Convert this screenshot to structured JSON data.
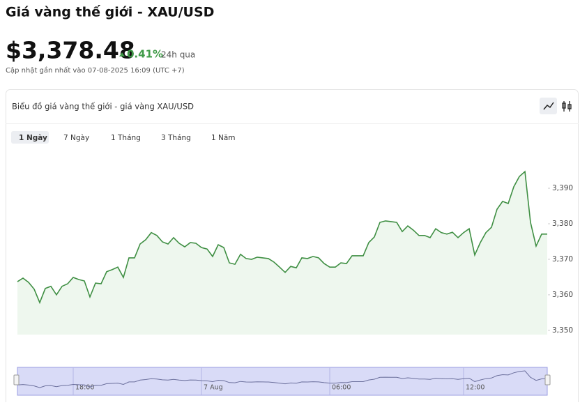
{
  "header": {
    "title": "Giá vàng thế giới - XAU/USD",
    "price": "$3,378.48",
    "change": "0.41%",
    "period": "24h qua",
    "updated": "Cập nhật gần nhất vào 07-08-2025 16:09 (UTC +7)"
  },
  "card": {
    "title": "Biểu đồ giá vàng thế giới - giá vàng XAU/USD",
    "tabs": [
      "1 Ngày",
      "7 Ngày",
      "1 Tháng",
      "3 Tháng",
      "1 Năm"
    ]
  },
  "chart_data": {
    "type": "line",
    "color": "#3f8f43",
    "area_color": "#eef7ee",
    "categories": [
      null,
      null,
      null,
      null,
      null,
      null,
      null,
      null,
      null,
      null,
      "18:00",
      null,
      null,
      null,
      null,
      null,
      null,
      null,
      null,
      null,
      null,
      null,
      null,
      null,
      null,
      null,
      null,
      null,
      null,
      null,
      null,
      null,
      null,
      "7 Aug",
      null,
      null,
      null,
      null,
      null,
      null,
      null,
      null,
      null,
      null,
      null,
      null,
      null,
      null,
      null,
      null,
      null,
      null,
      null,
      null,
      null,
      null,
      "06:00",
      null,
      null,
      null,
      null,
      null,
      null,
      null,
      null,
      null,
      null,
      null,
      null,
      null,
      null,
      null,
      null,
      null,
      null,
      null,
      null,
      null,
      null,
      null,
      "12:00",
      null,
      null,
      null,
      null,
      null,
      null,
      null,
      null,
      null,
      null,
      null,
      null,
      null,
      null,
      null
    ],
    "values": [
      3363.7,
      3364.7,
      3363.5,
      3361.6,
      3357.8,
      3361.8,
      3362.4,
      3360.0,
      3362.4,
      3363.1,
      3364.9,
      3364.3,
      3363.9,
      3359.4,
      3363.3,
      3363.1,
      3366.5,
      3367.1,
      3367.8,
      3364.9,
      3370.4,
      3370.4,
      3374.3,
      3375.5,
      3377.5,
      3376.7,
      3374.9,
      3374.3,
      3376.1,
      3374.5,
      3373.5,
      3374.7,
      3374.5,
      3373.3,
      3372.9,
      3370.8,
      3374.1,
      3373.3,
      3369.0,
      3368.6,
      3371.4,
      3370.2,
      3370.0,
      3370.6,
      3370.4,
      3370.2,
      3369.2,
      3367.8,
      3366.3,
      3368.0,
      3367.6,
      3370.4,
      3370.2,
      3370.8,
      3370.4,
      3368.8,
      3367.8,
      3367.8,
      3369.0,
      3368.8,
      3371.0,
      3371.0,
      3371.0,
      3374.7,
      3376.3,
      3380.4,
      3380.8,
      3380.6,
      3380.4,
      3377.8,
      3379.4,
      3378.2,
      3376.7,
      3376.7,
      3376.1,
      3378.6,
      3377.5,
      3377.1,
      3377.6,
      3376.1,
      3377.5,
      3378.6,
      3371.2,
      3374.7,
      3377.5,
      3379.0,
      3384.1,
      3386.3,
      3385.7,
      3390.4,
      3393.3,
      3394.7,
      3380.4,
      3373.7,
      3377.1,
      3377.1
    ],
    "ylim": [
      3348.8,
      3400.8
    ],
    "yticks": [
      {
        "value": 3350,
        "label": "3,350"
      },
      {
        "value": 3360,
        "label": "3,360"
      },
      {
        "value": 3370,
        "label": "3,370"
      },
      {
        "value": 3380,
        "label": "3,380"
      },
      {
        "value": 3390,
        "label": "3,390"
      }
    ]
  }
}
